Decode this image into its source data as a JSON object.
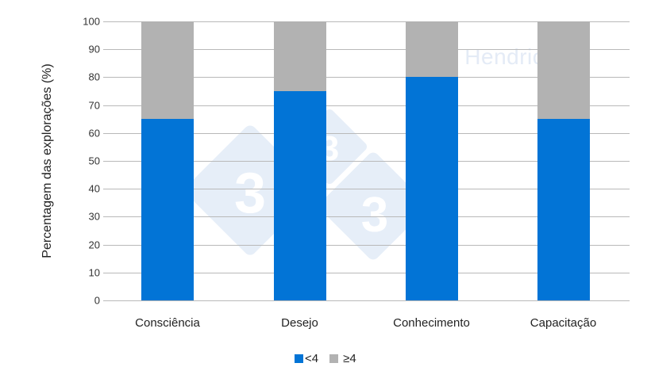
{
  "chart_data": {
    "type": "bar",
    "stacked": true,
    "title": "",
    "xlabel": "",
    "ylabel": "Percentagem das explorações (%)",
    "ylim": [
      0,
      100
    ],
    "yticks": [
      0,
      10,
      20,
      30,
      40,
      50,
      60,
      70,
      80,
      90,
      100
    ],
    "grid": true,
    "legend_position": "bottom",
    "categories": [
      "Consciência",
      "Desejo",
      "Conhecimento",
      "Capacitação"
    ],
    "series": [
      {
        "name": "<4",
        "color": "#0274d6",
        "values": [
          65,
          75,
          80,
          65
        ]
      },
      {
        "name": "≥4",
        "color": "#b2b2b2",
        "values": [
          35,
          25,
          20,
          35
        ]
      }
    ],
    "annotations": [
      "D. Hendrickx"
    ]
  },
  "watermark": {
    "text": "D. Hendrickx",
    "logo_glyph": "3"
  }
}
